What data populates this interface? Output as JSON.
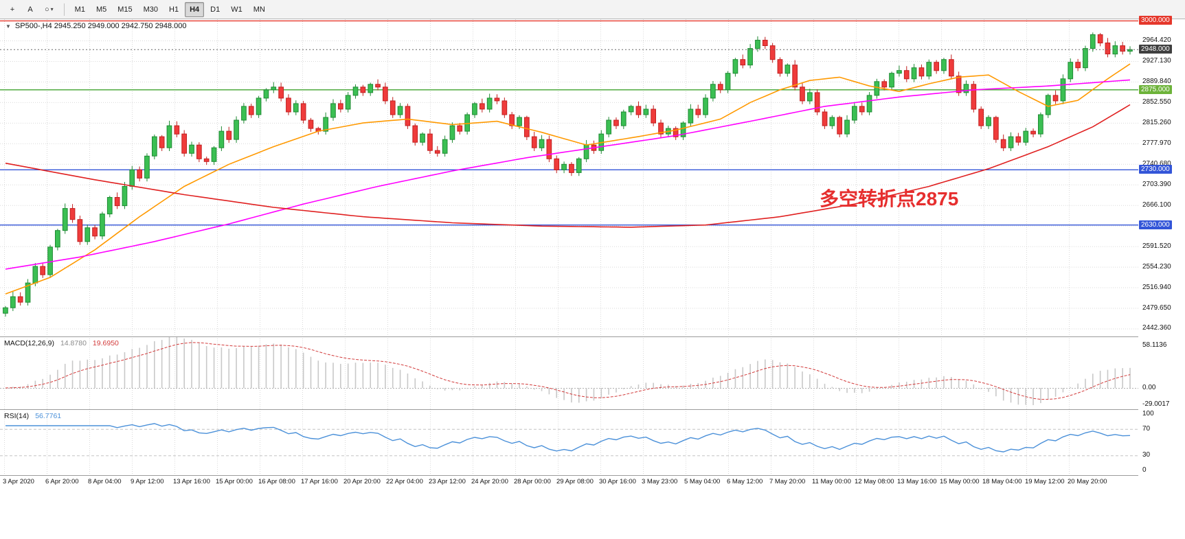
{
  "toolbar": {
    "icons": {
      "crosshair": "+",
      "text_tool": "A",
      "shapes": "○",
      "caret": "▾",
      "title_marker": "▼"
    },
    "timeframes": [
      "M1",
      "M5",
      "M15",
      "M30",
      "H1",
      "H4",
      "D1",
      "W1",
      "MN"
    ],
    "active_timeframe": "H4"
  },
  "chart": {
    "title": "SP500-,H4 2945.250 2949.000 2942.750 2948.000",
    "symbol": "SP500-",
    "period": "H4",
    "ohlc": {
      "open": "2945.250",
      "high": "2949.000",
      "low": "2942.750",
      "close": "2948.000"
    },
    "annotation": {
      "text": "多空转折点2875",
      "color": "#e62e2e"
    }
  },
  "indicators": {
    "macd": {
      "name": "MACD(12,26,9)",
      "main_value": "14.8780",
      "signal_value": "19.6950",
      "params": {
        "fast": 12,
        "slow": 26,
        "signal": 9
      },
      "axis_labels": [
        {
          "label": "58.1136",
          "value": 58.1136
        },
        {
          "label": "0.00",
          "value": 0
        },
        {
          "label": "-29.0017",
          "value": -29.0017
        }
      ],
      "range_max": 58.1136,
      "range_min": -29.0017
    },
    "rsi": {
      "name": "RSI(14)",
      "value": "56.7761",
      "period": 14,
      "axis_labels": [
        {
          "label": "100",
          "value": 100
        },
        {
          "label": "70",
          "value": 70
        },
        {
          "label": "30",
          "value": 30
        },
        {
          "label": "0",
          "value": 0
        }
      ],
      "levels": [
        70,
        30
      ]
    }
  },
  "chart_data": {
    "type": "candlestick",
    "symbol": "SP500-",
    "timeframe": "H4",
    "price_axis": {
      "min": 2428,
      "max": 3003,
      "ticks": [
        {
          "label": "2964.420",
          "price": 2964.42
        },
        {
          "label": "2927.130",
          "price": 2927.13
        },
        {
          "label": "2889.840",
          "price": 2889.84
        },
        {
          "label": "2852.550",
          "price": 2852.55
        },
        {
          "label": "2815.260",
          "price": 2815.26
        },
        {
          "label": "2777.970",
          "price": 2777.97
        },
        {
          "label": "2740.680",
          "price": 2740.68
        },
        {
          "label": "2703.390",
          "price": 2703.39
        },
        {
          "label": "2666.100",
          "price": 2666.1
        },
        {
          "label": "2628.810",
          "price": 2628.81,
          "show_label": false
        },
        {
          "label": "2591.520",
          "price": 2591.52
        },
        {
          "label": "2554.230",
          "price": 2554.23
        },
        {
          "label": "2516.940",
          "price": 2516.94
        },
        {
          "label": "2479.650",
          "price": 2479.65
        },
        {
          "label": "2442.360",
          "price": 2442.36
        }
      ],
      "badges": [
        {
          "label": "3000.000",
          "price": 3000,
          "bg": "#e5372b"
        },
        {
          "label": "2948.000",
          "price": 2948,
          "bg": "#3f3f3f"
        },
        {
          "label": "2875.000",
          "price": 2875,
          "bg": "#6db33a"
        },
        {
          "label": "2730.000",
          "price": 2730,
          "bg": "#3355d8"
        },
        {
          "label": "2630.000",
          "price": 2630,
          "bg": "#3355d8"
        }
      ]
    },
    "hlines": [
      {
        "price": 3000,
        "color": "#e5372b",
        "label": "3000.000"
      },
      {
        "price": 2875,
        "color": "#3fa32e",
        "label": "2875.000"
      },
      {
        "price": 2730,
        "color": "#3355d8",
        "label": "2730.000"
      },
      {
        "price": 2630,
        "color": "#3355d8",
        "label": "2630.000"
      }
    ],
    "current_price": {
      "value": 2948.0,
      "label": "2948.000",
      "color": "#3f3f3f"
    },
    "first_open": 2470,
    "closes": [
      2480,
      2500,
      2490,
      2525,
      2555,
      2540,
      2590,
      2620,
      2660,
      2640,
      2600,
      2625,
      2610,
      2650,
      2680,
      2665,
      2700,
      2730,
      2715,
      2755,
      2790,
      2770,
      2810,
      2795,
      2760,
      2775,
      2750,
      2745,
      2770,
      2800,
      2785,
      2820,
      2845,
      2830,
      2860,
      2875,
      2880,
      2860,
      2835,
      2850,
      2820,
      2805,
      2800,
      2825,
      2850,
      2840,
      2865,
      2880,
      2870,
      2885,
      2880,
      2855,
      2830,
      2845,
      2810,
      2780,
      2795,
      2765,
      2760,
      2785,
      2810,
      2800,
      2830,
      2850,
      2840,
      2860,
      2855,
      2830,
      2810,
      2825,
      2790,
      2770,
      2785,
      2750,
      2730,
      2740,
      2725,
      2750,
      2775,
      2765,
      2795,
      2820,
      2810,
      2835,
      2845,
      2830,
      2840,
      2815,
      2795,
      2805,
      2790,
      2815,
      2840,
      2830,
      2860,
      2885,
      2875,
      2905,
      2930,
      2920,
      2950,
      2965,
      2955,
      2930,
      2905,
      2920,
      2880,
      2855,
      2870,
      2835,
      2810,
      2825,
      2795,
      2820,
      2845,
      2835,
      2865,
      2890,
      2880,
      2905,
      2910,
      2895,
      2915,
      2900,
      2925,
      2910,
      2930,
      2900,
      2870,
      2885,
      2840,
      2810,
      2825,
      2785,
      2770,
      2790,
      2780,
      2800,
      2795,
      2830,
      2865,
      2855,
      2895,
      2925,
      2915,
      2950,
      2975,
      2960,
      2940,
      2955,
      2945,
      2948
    ],
    "colors": {
      "up": "#3bbf53",
      "up_border": "#1f8a33",
      "down": "#ef3b3b",
      "down_border": "#c11f1f",
      "grid": "#d9d9d9",
      "macd_hist": "#c8c8c8",
      "macd_signal": "#d23a3a",
      "rsi_line": "#4a90d9"
    },
    "moving_averages": [
      {
        "name": "MA-fast",
        "color": "#ff9900",
        "anchors": [
          [
            0,
            2505
          ],
          [
            6,
            2535
          ],
          [
            12,
            2585
          ],
          [
            18,
            2645
          ],
          [
            24,
            2700
          ],
          [
            30,
            2740
          ],
          [
            36,
            2772
          ],
          [
            42,
            2800
          ],
          [
            48,
            2815
          ],
          [
            54,
            2822
          ],
          [
            60,
            2812
          ],
          [
            66,
            2818
          ],
          [
            72,
            2798
          ],
          [
            78,
            2775
          ],
          [
            84,
            2788
          ],
          [
            90,
            2802
          ],
          [
            96,
            2822
          ],
          [
            100,
            2852
          ],
          [
            104,
            2875
          ],
          [
            108,
            2892
          ],
          [
            112,
            2898
          ],
          [
            116,
            2882
          ],
          [
            120,
            2872
          ],
          [
            124,
            2886
          ],
          [
            128,
            2898
          ],
          [
            132,
            2902
          ],
          [
            136,
            2872
          ],
          [
            140,
            2845
          ],
          [
            144,
            2856
          ],
          [
            148,
            2895
          ],
          [
            151,
            2922
          ]
        ]
      },
      {
        "name": "MA-mid",
        "color": "#ff00ff",
        "anchors": [
          [
            0,
            2550
          ],
          [
            10,
            2572
          ],
          [
            20,
            2600
          ],
          [
            30,
            2632
          ],
          [
            40,
            2668
          ],
          [
            50,
            2700
          ],
          [
            60,
            2728
          ],
          [
            70,
            2752
          ],
          [
            80,
            2772
          ],
          [
            90,
            2792
          ],
          [
            100,
            2818
          ],
          [
            110,
            2845
          ],
          [
            120,
            2862
          ],
          [
            130,
            2875
          ],
          [
            140,
            2882
          ],
          [
            151,
            2893
          ]
        ]
      },
      {
        "name": "MA-slow",
        "color": "#e02020",
        "anchors": [
          [
            0,
            2742
          ],
          [
            12,
            2712
          ],
          [
            24,
            2685
          ],
          [
            36,
            2662
          ],
          [
            48,
            2645
          ],
          [
            60,
            2634
          ],
          [
            72,
            2628
          ],
          [
            84,
            2626
          ],
          [
            94,
            2630
          ],
          [
            104,
            2645
          ],
          [
            114,
            2668
          ],
          [
            124,
            2700
          ],
          [
            132,
            2732
          ],
          [
            140,
            2772
          ],
          [
            146,
            2808
          ],
          [
            151,
            2848
          ]
        ]
      }
    ],
    "time_labels": [
      "3 Apr 2020",
      "6 Apr 20:00",
      "8 Apr 04:00",
      "9 Apr 12:00",
      "13 Apr 16:00",
      "15 Apr 00:00",
      "16 Apr 08:00",
      "17 Apr 16:00",
      "20 Apr 20:00",
      "22 Apr 04:00",
      "23 Apr 12:00",
      "24 Apr 20:00",
      "28 Apr 00:00",
      "29 Apr 08:00",
      "30 Apr 16:00",
      "3 May 23:00",
      "5 May 04:00",
      "6 May 12:00",
      "7 May 20:00",
      "11 May 00:00",
      "12 May 08:00",
      "13 May 16:00",
      "15 May 00:00",
      "18 May 04:00",
      "19 May 12:00",
      "20 May 20:00"
    ]
  }
}
